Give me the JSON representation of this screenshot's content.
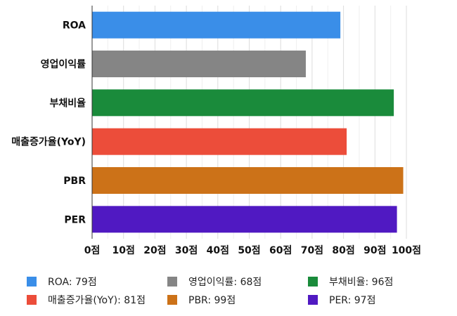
{
  "chart_data": {
    "type": "bar",
    "orientation": "horizontal",
    "categories": [
      "ROA",
      "영업이익률",
      "부채비율",
      "매출증가율(YoY)",
      "PBR",
      "PER"
    ],
    "values": [
      79,
      68,
      96,
      81,
      99,
      97
    ],
    "colors": [
      "#3a8ee8",
      "#858585",
      "#1a8b3b",
      "#ec4d3a",
      "#cc7218",
      "#5019c2"
    ],
    "xlim": [
      0,
      100
    ],
    "x_ticks": [
      0,
      10,
      20,
      30,
      40,
      50,
      60,
      70,
      80,
      90,
      100
    ],
    "tick_unit": "점",
    "grid": true,
    "legend_position": "bottom",
    "legend": [
      "ROA: 79점",
      "영업이익률: 68점",
      "부채비율: 96점",
      "매출증가율(YoY): 81점",
      "PBR: 99점",
      "PER: 97점"
    ]
  }
}
